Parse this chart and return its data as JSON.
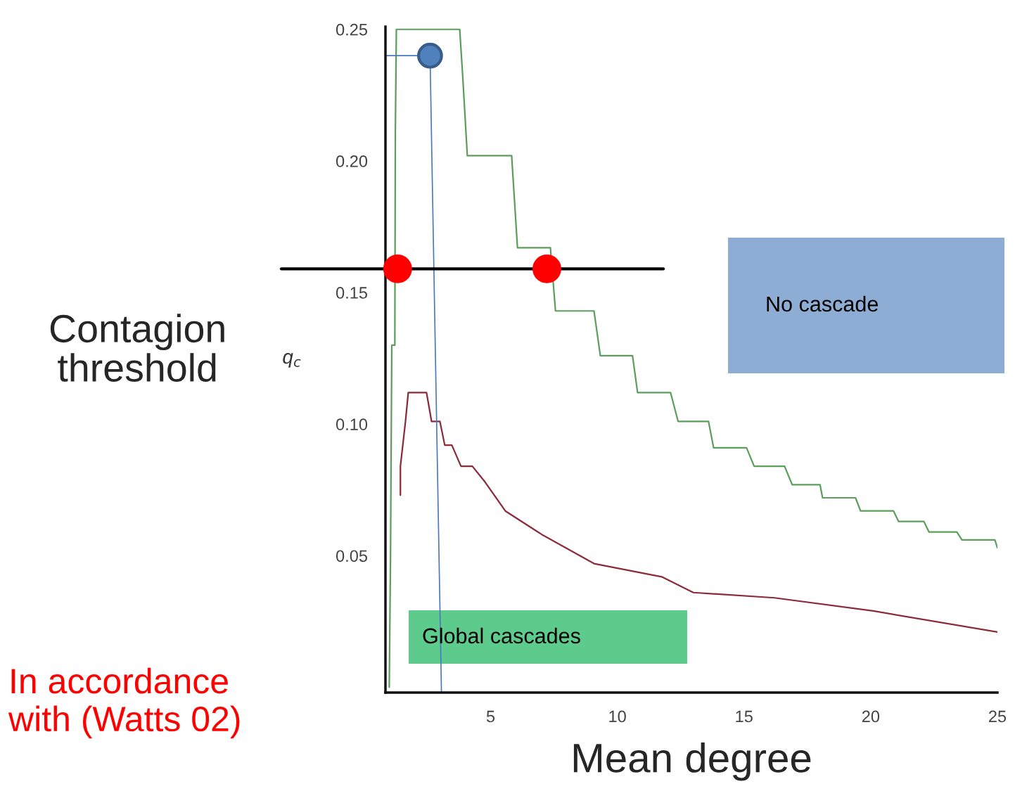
{
  "chart_data": {
    "type": "line",
    "xlabel": "Mean degree",
    "ylabel": "Contagion\nthreshold",
    "xlim": [
      0.85,
      25
    ],
    "ylim": [
      -0.002,
      0.251
    ],
    "xticks": [
      5,
      10,
      15,
      20,
      25
    ],
    "yticks": [
      {
        "value": 0.05,
        "label": "0.05"
      },
      {
        "value": 0.1,
        "label": "0.10"
      },
      {
        "value": 0.15,
        "label": "0.15"
      },
      {
        "value": 0.2,
        "label": "0.20"
      },
      {
        "value": 0.25,
        "label": "0.25"
      }
    ],
    "grid": false,
    "legend": false,
    "series": [
      {
        "color": "#5c9e5c",
        "x": [
          1.0,
          1.05,
          1.1,
          1.22,
          1.24,
          1.28,
          3.78,
          3.9,
          4.08,
          5.83,
          6.06,
          7.36,
          7.56,
          9.08,
          9.33,
          10.6,
          10.8,
          12.1,
          12.4,
          13.6,
          13.8,
          15.1,
          15.4,
          16.6,
          16.9,
          18.0,
          18.1,
          19.4,
          19.6,
          20.9,
          21.1,
          22.1,
          22.3,
          23.4,
          23.6,
          24.9,
          25.0
        ],
        "values": [
          0.0,
          0.05,
          0.13,
          0.13,
          0.21,
          0.25,
          0.25,
          0.232,
          0.202,
          0.202,
          0.167,
          0.167,
          0.143,
          0.143,
          0.126,
          0.126,
          0.112,
          0.112,
          0.101,
          0.101,
          0.091,
          0.091,
          0.084,
          0.084,
          0.077,
          0.077,
          0.072,
          0.072,
          0.067,
          0.067,
          0.063,
          0.063,
          0.059,
          0.059,
          0.056,
          0.056,
          0.053
        ]
      },
      {
        "color": "#8b2a3a",
        "x": [
          1.44,
          1.44,
          1.64,
          1.75,
          2.47,
          2.67,
          3.0,
          3.19,
          3.47,
          3.83,
          4.28,
          4.78,
          5.58,
          7.03,
          9.08,
          11.75,
          13.0,
          16.2,
          20.1,
          25.0
        ],
        "values": [
          0.073,
          0.084,
          0.101,
          0.112,
          0.112,
          0.101,
          0.101,
          0.092,
          0.092,
          0.084,
          0.084,
          0.078,
          0.067,
          0.058,
          0.047,
          0.042,
          0.036,
          0.034,
          0.029,
          0.021
        ]
      },
      {
        "color": "#4a78c0",
        "x": [
          0.85,
          2.61,
          3.06
        ],
        "values": [
          0.24,
          0.24,
          -0.002
        ]
      },
      {
        "type": "scatter",
        "marker": "circle",
        "color": "#ff0000",
        "x": [
          1.33,
          7.22
        ],
        "values": [
          0.159,
          0.159
        ]
      },
      {
        "type": "scatter",
        "marker": "circle",
        "color": "#4f81bd",
        "x": [
          2.61
        ],
        "values": [
          0.24
        ]
      }
    ],
    "ref_lines": [
      {
        "axis": "y",
        "value": 0.159,
        "color": "#000000"
      }
    ],
    "annotations": [
      "No cascade",
      "Global cascades",
      "q$_{c}$",
      "In accordance\nwith (Watts 02)"
    ]
  }
}
